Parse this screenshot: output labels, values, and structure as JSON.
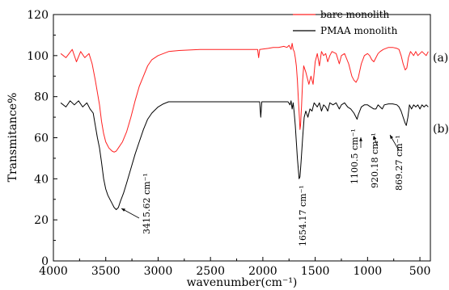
{
  "chart_data": {
    "type": "line",
    "xlabel": "wavenumber(cm⁻¹)",
    "ylabel": "Transmitance%",
    "xlim": [
      4000,
      400
    ],
    "ylim": [
      0,
      120
    ],
    "x_reversed": true,
    "x_ticks": [
      "4000",
      "3500",
      "3000",
      "2500",
      "2000",
      "1500",
      "1000",
      "500"
    ],
    "y_ticks": [
      "0",
      "20",
      "40",
      "60",
      "80",
      "100",
      "120"
    ],
    "grid": false,
    "legend_position": "top-right",
    "series": [
      {
        "name": "bare monolith",
        "tag": "(a)",
        "color": "#ff2020",
        "points": [
          [
            3930,
            101
          ],
          [
            3880,
            99
          ],
          [
            3820,
            103
          ],
          [
            3780,
            97
          ],
          [
            3740,
            102
          ],
          [
            3700,
            99
          ],
          [
            3660,
            101
          ],
          [
            3630,
            96
          ],
          [
            3600,
            88
          ],
          [
            3580,
            82
          ],
          [
            3560,
            76
          ],
          [
            3540,
            68
          ],
          [
            3520,
            62
          ],
          [
            3500,
            58
          ],
          [
            3470,
            55
          ],
          [
            3440,
            53.5
          ],
          [
            3420,
            53
          ],
          [
            3400,
            53.5
          ],
          [
            3380,
            55
          ],
          [
            3340,
            58
          ],
          [
            3300,
            63
          ],
          [
            3260,
            70
          ],
          [
            3220,
            78
          ],
          [
            3180,
            85
          ],
          [
            3140,
            90
          ],
          [
            3100,
            95
          ],
          [
            3060,
            98
          ],
          [
            3000,
            100
          ],
          [
            2950,
            101
          ],
          [
            2900,
            102
          ],
          [
            2800,
            102.5
          ],
          [
            2600,
            103
          ],
          [
            2400,
            103
          ],
          [
            2200,
            103
          ],
          [
            2100,
            103
          ],
          [
            2050,
            103
          ],
          [
            2040,
            99
          ],
          [
            2030,
            103
          ],
          [
            1950,
            103.5
          ],
          [
            1900,
            104
          ],
          [
            1850,
            104
          ],
          [
            1800,
            104.5
          ],
          [
            1770,
            104
          ],
          [
            1750,
            105
          ],
          [
            1730,
            103
          ],
          [
            1720,
            106
          ],
          [
            1710,
            103
          ],
          [
            1700,
            102
          ],
          [
            1690,
            99
          ],
          [
            1680,
            95
          ],
          [
            1670,
            88
          ],
          [
            1660,
            78
          ],
          [
            1650,
            69
          ],
          [
            1645,
            64
          ],
          [
            1640,
            66
          ],
          [
            1630,
            76
          ],
          [
            1620,
            88
          ],
          [
            1610,
            95
          ],
          [
            1590,
            92
          ],
          [
            1560,
            86
          ],
          [
            1540,
            90
          ],
          [
            1520,
            86
          ],
          [
            1500,
            97
          ],
          [
            1480,
            101
          ],
          [
            1460,
            95
          ],
          [
            1440,
            102
          ],
          [
            1420,
            100
          ],
          [
            1400,
            101
          ],
          [
            1380,
            97
          ],
          [
            1360,
            100
          ],
          [
            1340,
            102
          ],
          [
            1300,
            101
          ],
          [
            1270,
            96
          ],
          [
            1250,
            100
          ],
          [
            1220,
            101
          ],
          [
            1180,
            96
          ],
          [
            1150,
            90
          ],
          [
            1130,
            88
          ],
          [
            1110,
            87
          ],
          [
            1090,
            89
          ],
          [
            1060,
            96
          ],
          [
            1030,
            100
          ],
          [
            1000,
            101
          ],
          [
            980,
            100
          ],
          [
            960,
            98
          ],
          [
            940,
            97
          ],
          [
            920,
            99
          ],
          [
            900,
            101
          ],
          [
            880,
            102
          ],
          [
            850,
            103
          ],
          [
            800,
            104
          ],
          [
            760,
            104
          ],
          [
            720,
            103.5
          ],
          [
            700,
            103
          ],
          [
            680,
            100
          ],
          [
            660,
            96
          ],
          [
            640,
            93
          ],
          [
            625,
            94
          ],
          [
            610,
            99
          ],
          [
            590,
            102
          ],
          [
            560,
            100
          ],
          [
            540,
            102
          ],
          [
            520,
            100
          ],
          [
            500,
            101
          ],
          [
            480,
            102
          ],
          [
            460,
            101
          ],
          [
            440,
            100
          ],
          [
            420,
            102
          ]
        ]
      },
      {
        "name": "PMAA monolith",
        "tag": "(b)",
        "color": "#000000",
        "points": [
          [
            3930,
            77
          ],
          [
            3880,
            75
          ],
          [
            3840,
            78
          ],
          [
            3800,
            76
          ],
          [
            3760,
            78
          ],
          [
            3720,
            75
          ],
          [
            3680,
            77
          ],
          [
            3650,
            74
          ],
          [
            3620,
            72
          ],
          [
            3600,
            66
          ],
          [
            3580,
            60
          ],
          [
            3560,
            55
          ],
          [
            3540,
            48
          ],
          [
            3520,
            40
          ],
          [
            3500,
            35
          ],
          [
            3480,
            32
          ],
          [
            3460,
            30
          ],
          [
            3440,
            28
          ],
          [
            3420,
            26
          ],
          [
            3400,
            25
          ],
          [
            3380,
            26
          ],
          [
            3360,
            29
          ],
          [
            3330,
            33
          ],
          [
            3300,
            38
          ],
          [
            3260,
            45
          ],
          [
            3220,
            52
          ],
          [
            3180,
            58
          ],
          [
            3140,
            64
          ],
          [
            3100,
            69
          ],
          [
            3060,
            72
          ],
          [
            3000,
            75
          ],
          [
            2950,
            76.5
          ],
          [
            2900,
            77.5
          ],
          [
            2800,
            77.5
          ],
          [
            2600,
            77.5
          ],
          [
            2400,
            77.5
          ],
          [
            2200,
            77.5
          ],
          [
            2100,
            77.5
          ],
          [
            2030,
            77.5
          ],
          [
            2020,
            70
          ],
          [
            2010,
            77.5
          ],
          [
            1950,
            77.5
          ],
          [
            1850,
            77.5
          ],
          [
            1800,
            77.5
          ],
          [
            1760,
            77.5
          ],
          [
            1740,
            76
          ],
          [
            1730,
            78
          ],
          [
            1720,
            74
          ],
          [
            1710,
            77
          ],
          [
            1700,
            72
          ],
          [
            1690,
            66
          ],
          [
            1680,
            58
          ],
          [
            1670,
            50
          ],
          [
            1660,
            44
          ],
          [
            1654,
            40
          ],
          [
            1645,
            41
          ],
          [
            1635,
            48
          ],
          [
            1620,
            60
          ],
          [
            1605,
            70
          ],
          [
            1590,
            73
          ],
          [
            1570,
            70
          ],
          [
            1550,
            74
          ],
          [
            1530,
            73
          ],
          [
            1510,
            77
          ],
          [
            1480,
            75
          ],
          [
            1460,
            77
          ],
          [
            1440,
            73
          ],
          [
            1420,
            76
          ],
          [
            1400,
            75
          ],
          [
            1380,
            73
          ],
          [
            1360,
            77
          ],
          [
            1330,
            76
          ],
          [
            1300,
            77
          ],
          [
            1270,
            74
          ],
          [
            1250,
            76
          ],
          [
            1220,
            77
          ],
          [
            1190,
            75
          ],
          [
            1160,
            74
          ],
          [
            1130,
            72
          ],
          [
            1110,
            70
          ],
          [
            1100,
            69
          ],
          [
            1090,
            71
          ],
          [
            1060,
            75
          ],
          [
            1030,
            76
          ],
          [
            1000,
            76
          ],
          [
            970,
            75
          ],
          [
            940,
            74
          ],
          [
            920,
            74
          ],
          [
            900,
            76
          ],
          [
            880,
            75
          ],
          [
            860,
            74
          ],
          [
            840,
            76
          ],
          [
            800,
            76.5
          ],
          [
            760,
            76.5
          ],
          [
            720,
            76
          ],
          [
            700,
            75
          ],
          [
            680,
            73
          ],
          [
            660,
            70
          ],
          [
            640,
            67
          ],
          [
            630,
            66
          ],
          [
            615,
            70
          ],
          [
            600,
            76
          ],
          [
            580,
            74
          ],
          [
            560,
            76
          ],
          [
            540,
            75
          ],
          [
            520,
            76
          ],
          [
            500,
            74
          ],
          [
            480,
            76
          ],
          [
            460,
            75
          ],
          [
            440,
            76
          ],
          [
            420,
            75
          ]
        ]
      }
    ],
    "annotations": [
      {
        "text": "3415.62 cm⁻¹",
        "x": 3415,
        "y": 25
      },
      {
        "text": "1654.17 cm⁻¹",
        "x": 1654,
        "y": 40
      },
      {
        "text": "1100.5 cm⁻¹",
        "x": 1100,
        "y": 69
      },
      {
        "text": "920.18 cm⁻¹",
        "x": 920,
        "y": 74
      },
      {
        "text": "869.27 cm⁻¹",
        "x": 869,
        "y": 74
      }
    ]
  }
}
